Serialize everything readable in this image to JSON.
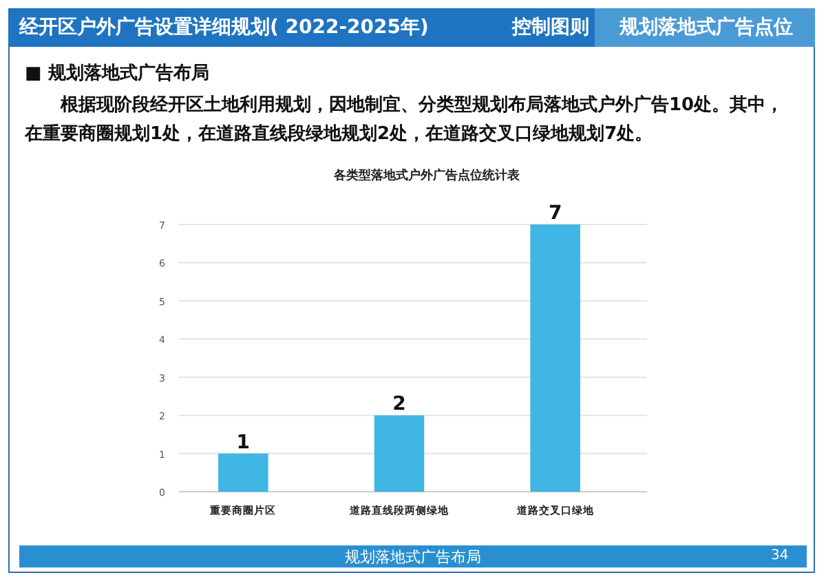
{
  "chart_data": {
    "type": "bar",
    "title": "各类型落地式户外广告点位统计表",
    "categories": [
      "重要商圈片区",
      "道路直线段两侧绿地",
      "道路交叉口绿地"
    ],
    "values": [
      1,
      2,
      7
    ],
    "color": "#3fb6e4",
    "ylim": [
      0,
      7
    ],
    "yticks": [
      0,
      1,
      2,
      3,
      4,
      5,
      6,
      7
    ],
    "grid": "y",
    "data_labels": true,
    "annotations": [
      "经开区户外广告设置详细规划( 2022-2025年)",
      "控制图则",
      "规划落地式广告点位",
      "■ 规划落地式广告布局",
      "根据现阶段经开区土地利用规划，因地制宜、分类型规划布局落地式户外广告10处。其中，在重要商圈规划1处，在道路直线段绿地规划2处，在道路交叉口绿地规划7处。",
      "规划落地式广告布局",
      "34"
    ]
  }
}
